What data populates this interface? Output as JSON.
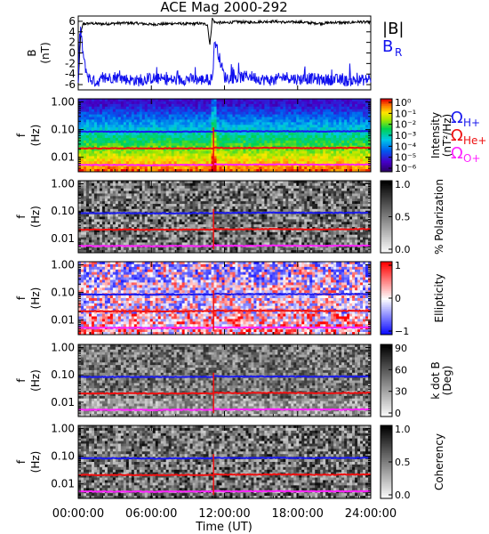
{
  "title": "ACE Mag 2000-292",
  "colors": {
    "axis": "#000000",
    "bmag": "#000000",
    "br": "#1010ee",
    "h_plus": "#1a1aee",
    "he_plus": "#ee1010",
    "o_plus": "#ff22ff"
  },
  "chart_data": [
    {
      "type": "line",
      "panel": "field",
      "ylabel": [
        "B",
        "(nT)"
      ],
      "ylim": [
        -7,
        7
      ],
      "yticks": [
        "6",
        "4",
        "2",
        "0",
        "-2",
        "-4",
        "-6"
      ],
      "ytick_values": [
        6,
        4,
        2,
        0,
        -2,
        -4,
        -6
      ],
      "x_range_hours": [
        0,
        24
      ],
      "series": [
        {
          "name": "|B|",
          "color": "#000000",
          "x_hours": [
            0.0,
            0.2,
            0.4,
            1,
            2,
            3,
            4,
            5,
            6,
            7,
            8,
            9,
            10,
            10.6,
            10.8,
            11,
            11.2,
            12,
            13,
            14,
            15,
            16,
            17,
            18,
            19,
            20,
            21,
            22,
            23,
            24
          ],
          "values": [
            -6.0,
            3.5,
            5.5,
            5.6,
            5.5,
            5.6,
            5.7,
            5.6,
            5.4,
            5.5,
            5.6,
            5.5,
            5.6,
            5.4,
            1.5,
            6.5,
            5.8,
            5.7,
            5.9,
            5.8,
            5.9,
            6.0,
            5.8,
            5.9,
            5.7,
            5.6,
            5.8,
            5.7,
            5.9,
            5.8
          ]
        },
        {
          "name": "B_R",
          "color": "#1010ee",
          "x_hours": [
            0.0,
            0.1,
            0.2,
            0.3,
            0.5,
            0.8,
            1,
            1.5,
            2,
            3,
            4,
            5,
            6,
            7,
            8,
            9,
            10,
            11,
            11.2,
            12,
            13,
            14,
            15,
            16,
            17,
            18,
            19,
            20,
            21,
            22,
            23,
            24
          ],
          "values": [
            -6.0,
            3.0,
            4.0,
            2.0,
            -2.0,
            -4.5,
            -5.0,
            -5.5,
            -5.0,
            -4.5,
            -5.0,
            -5.3,
            -4.8,
            -5.0,
            -5.2,
            -4.9,
            -5.1,
            -5.0,
            2.5,
            -4.6,
            -4.8,
            -4.3,
            -5.0,
            -5.2,
            -4.5,
            -5.0,
            -4.8,
            -5.1,
            -5.0,
            -5.3,
            -5.2,
            -5.0
          ]
        }
      ],
      "labels": {
        "bmag": "|B|",
        "br_main": "B",
        "br_sub": "R"
      }
    },
    {
      "type": "heatmap",
      "panel": "intensity",
      "ylabel": [
        "f",
        "(Hz)"
      ],
      "ylim_hz": [
        0.003,
        1.3
      ],
      "yscale": "log",
      "yticks": [
        "1.00",
        "0.10",
        "0.01"
      ],
      "colorbar": {
        "label": "Intensity",
        "unit": "(nT²/Hz)",
        "ticks": [
          "10⁰",
          "10⁻¹",
          "10⁻²",
          "10⁻³",
          "10⁻⁴",
          "10⁻⁵",
          "10⁻⁶"
        ],
        "tick_exps": [
          0,
          -1,
          -2,
          -3,
          -4,
          -5,
          -6
        ],
        "scale": "rainbow"
      }
    },
    {
      "type": "heatmap",
      "panel": "polarization",
      "ylabel": [
        "f",
        "(Hz)"
      ],
      "ylim_hz": [
        0.003,
        1.3
      ],
      "yscale": "log",
      "yticks": [
        "1.00",
        "0.10",
        "0.01"
      ],
      "colorbar": {
        "label": "% Polarization",
        "unit": "",
        "ticks": [
          "1.0",
          "0.5",
          "0.0"
        ],
        "tick_values": [
          1.0,
          0.5,
          0.0
        ],
        "scale": "gray"
      }
    },
    {
      "type": "heatmap",
      "panel": "ellipticity",
      "ylabel": [
        "f",
        "(Hz)"
      ],
      "ylim_hz": [
        0.003,
        1.3
      ],
      "yscale": "log",
      "yticks": [
        "1.00",
        "0.10",
        "0.01"
      ],
      "colorbar": {
        "label": "Ellipticity",
        "unit": "",
        "ticks": [
          "1",
          "0",
          "−1"
        ],
        "tick_values": [
          1,
          0,
          -1
        ],
        "scale": "bwr"
      }
    },
    {
      "type": "heatmap",
      "panel": "kdotb",
      "ylabel": [
        "f",
        "(Hz)"
      ],
      "ylim_hz": [
        0.003,
        1.3
      ],
      "yscale": "log",
      "yticks": [
        "1.00",
        "0.10",
        "0.01"
      ],
      "colorbar": {
        "label": "k dot B",
        "unit": "(Deg)",
        "ticks": [
          "90",
          "60",
          "30",
          "0"
        ],
        "tick_values": [
          90,
          60,
          30,
          0
        ],
        "scale": "gray"
      }
    },
    {
      "type": "heatmap",
      "panel": "coherency",
      "ylabel": [
        "f",
        "(Hz)"
      ],
      "ylim_hz": [
        0.003,
        1.3
      ],
      "yscale": "log",
      "yticks": [
        "1.00",
        "0.10",
        "0.01"
      ],
      "colorbar": {
        "label": "Coherency",
        "unit": "",
        "ticks": [
          "1.0",
          "0.5",
          "0.0"
        ],
        "tick_values": [
          1.0,
          0.5,
          0.0
        ],
        "scale": "gray"
      }
    }
  ],
  "gyrofrequency_lines": {
    "x_hours": [
      0,
      2,
      4,
      6,
      8,
      10,
      11,
      11.2,
      12,
      14,
      16,
      18,
      20,
      22,
      24
    ],
    "h_plus_hz": [
      0.085,
      0.084,
      0.085,
      0.083,
      0.084,
      0.085,
      0.084,
      0.09,
      0.086,
      0.087,
      0.088,
      0.087,
      0.086,
      0.087,
      0.088
    ],
    "he_plus_hz": [
      0.021,
      0.021,
      0.0212,
      0.0208,
      0.021,
      0.0212,
      0.021,
      0.0225,
      0.0215,
      0.0218,
      0.022,
      0.0218,
      0.0215,
      0.0218,
      0.022
    ],
    "o_plus_hz": [
      0.0053,
      0.0053,
      0.0053,
      0.0052,
      0.0053,
      0.0053,
      0.0053,
      0.0056,
      0.0054,
      0.0054,
      0.0055,
      0.0054,
      0.0054,
      0.0054,
      0.0055
    ]
  },
  "ion_legend": {
    "symbol": "Ω",
    "h": "H+",
    "he": "He+",
    "o": "O+"
  },
  "xaxis": {
    "label": "Time (UT)",
    "ticks": [
      "00:00:00",
      "06:00:00",
      "12:00:00",
      "18:00:00",
      "24:00:00"
    ],
    "tick_hours": [
      0,
      6,
      12,
      18,
      24
    ]
  }
}
